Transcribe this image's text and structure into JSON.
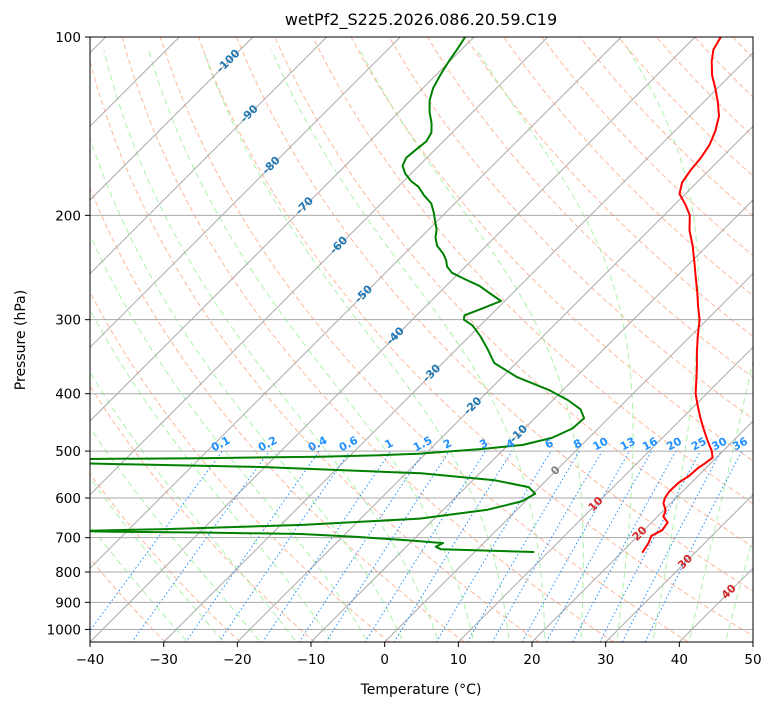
{
  "chart_data": {
    "type": "line",
    "title": "wetPf2_S225.2026.086.20.59.C19",
    "xlabel": "Temperature (°C)",
    "ylabel": "Pressure (hPa)",
    "xlim": [
      -40,
      50
    ],
    "ylim": [
      1050,
      100
    ],
    "x_ticks": [
      -40,
      -30,
      -20,
      -10,
      0,
      10,
      20,
      30,
      40,
      50
    ],
    "x_tick_labels": [
      "−40",
      "−30",
      "−20",
      "−10",
      "0",
      "10",
      "20",
      "30",
      "40",
      "50"
    ],
    "y_ticks": [
      100,
      200,
      300,
      400,
      500,
      600,
      700,
      800,
      900,
      1000
    ],
    "y_tick_labels": [
      "100",
      "200",
      "300",
      "400",
      "500",
      "600",
      "700",
      "800",
      "900",
      "1000"
    ],
    "grid": true,
    "y_scale": "log",
    "skew": "isotherms slanted 45°",
    "colors": {
      "temperature": "#ff0000",
      "dewpoint": "#008000",
      "isotherm_label": "#1f77b4",
      "mixing_ratio": "#1e90ff",
      "dry_adiabat": "#ffa07a",
      "moist_adiabat": "#90ee90",
      "gray_grid": "#aaaaaa",
      "red_label": "#d62728"
    },
    "series": [
      {
        "name": "Temperature",
        "color": "#ff0000",
        "points": [
          [
            22.8,
            740
          ],
          [
            22.4,
            715
          ],
          [
            21.8,
            695
          ],
          [
            22.5,
            680
          ],
          [
            22.2,
            660
          ],
          [
            20.8,
            645
          ],
          [
            20.3,
            630
          ],
          [
            19.0,
            612
          ],
          [
            18.5,
            600
          ],
          [
            18.2,
            585
          ],
          [
            18.3,
            565
          ],
          [
            18.8,
            550
          ],
          [
            18.9,
            535
          ],
          [
            19.2,
            525
          ],
          [
            19.5,
            513
          ],
          [
            18.5,
            500
          ],
          [
            16.5,
            480
          ],
          [
            14.5,
            460
          ],
          [
            12.5,
            440
          ],
          [
            10.5,
            420
          ],
          [
            8.5,
            400
          ],
          [
            6.8,
            380
          ],
          [
            5.0,
            360
          ],
          [
            3.0,
            340
          ],
          [
            1.0,
            320
          ],
          [
            -1.0,
            300
          ],
          [
            -3.0,
            285
          ],
          [
            -5.0,
            270
          ],
          [
            -7.2,
            255
          ],
          [
            -9.5,
            240
          ],
          [
            -12.0,
            225
          ],
          [
            -14.5,
            212
          ],
          [
            -16.5,
            200
          ],
          [
            -18.5,
            192
          ],
          [
            -20.8,
            184
          ],
          [
            -22.0,
            176
          ],
          [
            -22.5,
            168
          ],
          [
            -22.8,
            160
          ],
          [
            -23.4,
            152
          ],
          [
            -24.5,
            144
          ],
          [
            -26.0,
            136
          ],
          [
            -28.0,
            129
          ],
          [
            -30.3,
            122
          ],
          [
            -32.5,
            116
          ],
          [
            -34.4,
            110
          ],
          [
            -35.8,
            105
          ],
          [
            -36.5,
            100
          ]
        ]
      },
      {
        "name": "Dewpoint",
        "color": "#008000",
        "points": [
          [
            8.0,
            740
          ],
          [
            -5.0,
            732
          ],
          [
            -6.0,
            725
          ],
          [
            -5.5,
            715
          ],
          [
            -10.0,
            708
          ],
          [
            -18.0,
            698
          ],
          [
            -26.0,
            690
          ],
          [
            -40.0,
            686
          ],
          [
            -52.0,
            684
          ],
          [
            -57.0,
            682
          ],
          [
            -45.0,
            677
          ],
          [
            -27.0,
            666
          ],
          [
            -12.0,
            650
          ],
          [
            -4.0,
            628
          ],
          [
            -0.5,
            608
          ],
          [
            0.3,
            590
          ],
          [
            -1.5,
            575
          ],
          [
            -7.0,
            560
          ],
          [
            -18.0,
            545
          ],
          [
            -40.0,
            532
          ],
          [
            -70.0,
            523
          ],
          [
            -90.0,
            519
          ],
          [
            -70.0,
            516
          ],
          [
            -50.0,
            514
          ],
          [
            -34.0,
            511
          ],
          [
            -26.0,
            508
          ],
          [
            -21.0,
            505
          ],
          [
            -13.0,
            496
          ],
          [
            -8.0,
            488
          ],
          [
            -5.0,
            475
          ],
          [
            -3.5,
            458
          ],
          [
            -3.3,
            440
          ],
          [
            -5.0,
            425
          ],
          [
            -8.0,
            410
          ],
          [
            -12.0,
            394
          ],
          [
            -18.0,
            375
          ],
          [
            -23.0,
            355
          ],
          [
            -26.0,
            335
          ],
          [
            -28.5,
            320
          ],
          [
            -31.0,
            307
          ],
          [
            -33.0,
            300
          ],
          [
            -33.5,
            295
          ],
          [
            -32.0,
            287
          ],
          [
            -30.5,
            279
          ],
          [
            -33.0,
            271
          ],
          [
            -35.5,
            263
          ],
          [
            -38.5,
            256
          ],
          [
            -41.0,
            250
          ],
          [
            -42.5,
            244
          ],
          [
            -43.5,
            238
          ],
          [
            -44.8,
            232
          ],
          [
            -46.7,
            225
          ],
          [
            -48.0,
            218
          ],
          [
            -49.0,
            211
          ],
          [
            -50.2,
            205
          ],
          [
            -51.6,
            198
          ],
          [
            -53.2,
            191
          ],
          [
            -55.3,
            185
          ],
          [
            -57.2,
            179
          ],
          [
            -59.0,
            175
          ],
          [
            -60.8,
            170
          ],
          [
            -62.2,
            165
          ],
          [
            -62.8,
            160
          ],
          [
            -62.6,
            155
          ],
          [
            -62.3,
            150
          ],
          [
            -62.8,
            145
          ],
          [
            -64.0,
            140
          ],
          [
            -65.8,
            134
          ],
          [
            -67.4,
            128
          ],
          [
            -68.6,
            122
          ],
          [
            -69.4,
            116
          ],
          [
            -70.1,
            110
          ],
          [
            -70.6,
            105
          ],
          [
            -71.2,
            100
          ]
        ]
      }
    ],
    "isotherm_labels": [
      {
        "text": "-100",
        "temp": -100,
        "pressure": 110
      },
      {
        "text": "-90",
        "temp": -90,
        "pressure": 135
      },
      {
        "text": "-80",
        "temp": -80,
        "pressure": 165
      },
      {
        "text": "-70",
        "temp": -70,
        "pressure": 193
      },
      {
        "text": "-60",
        "temp": -60,
        "pressure": 225
      },
      {
        "text": "-50",
        "temp": -50,
        "pressure": 272
      },
      {
        "text": "-40",
        "temp": -40,
        "pressure": 320
      },
      {
        "text": "-30",
        "temp": -30,
        "pressure": 370
      },
      {
        "text": "-20",
        "temp": -20,
        "pressure": 420
      },
      {
        "text": "-10",
        "temp": -10,
        "pressure": 468
      }
    ],
    "mixing_ratios": [
      {
        "text": "0.1",
        "g_per_kg": 0.1
      },
      {
        "text": "0.2",
        "g_per_kg": 0.2
      },
      {
        "text": "0.4",
        "g_per_kg": 0.4
      },
      {
        "text": "0.6",
        "g_per_kg": 0.6
      },
      {
        "text": "1",
        "g_per_kg": 1
      },
      {
        "text": "1.5",
        "g_per_kg": 1.5
      },
      {
        "text": "2",
        "g_per_kg": 2
      },
      {
        "text": "3",
        "g_per_kg": 3
      },
      {
        "text": "4",
        "g_per_kg": 4
      },
      {
        "text": "6",
        "g_per_kg": 6
      },
      {
        "text": "8",
        "g_per_kg": 8
      },
      {
        "text": "10",
        "g_per_kg": 10
      },
      {
        "text": "13",
        "g_per_kg": 13
      },
      {
        "text": "16",
        "g_per_kg": 16
      },
      {
        "text": "20",
        "g_per_kg": 20
      },
      {
        "text": "25",
        "g_per_kg": 25
      },
      {
        "text": "30",
        "g_per_kg": 30
      },
      {
        "text": "36",
        "g_per_kg": 36
      }
    ],
    "other_labels": [
      {
        "text": "0",
        "temp": 0,
        "pressure": 540,
        "color": "#808080"
      },
      {
        "text": "10",
        "temp": 10,
        "pressure": 615,
        "color": "#d62728"
      },
      {
        "text": "20",
        "temp": 20,
        "pressure": 690,
        "color": "#d62728"
      },
      {
        "text": "30",
        "temp": 30,
        "pressure": 770,
        "color": "#d62728"
      },
      {
        "text": "40",
        "temp": 40,
        "pressure": 865,
        "color": "#d62728"
      }
    ]
  }
}
